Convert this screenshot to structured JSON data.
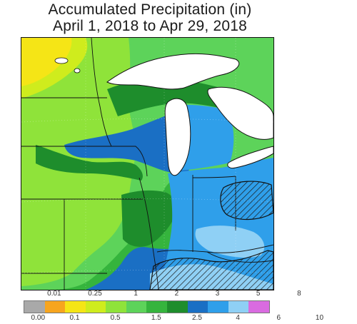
{
  "title": {
    "line1": "Accumulated Precipitation (in)",
    "line2": "April 1, 2018 to Apr 29, 2018"
  },
  "legend": {
    "colors": [
      "#a9a9a9",
      "#f7a51e",
      "#f5e516",
      "#cfec1d",
      "#8fe33a",
      "#5dd35a",
      "#35b43d",
      "#1e8d2c",
      "#1a6fc4",
      "#2f9fea",
      "#8fd0f5",
      "#d96be0"
    ],
    "top_labels": [
      "0.01",
      "0.25",
      "1",
      "2",
      "3",
      "5",
      "8"
    ],
    "bottom_labels": [
      "0.00",
      "0.1",
      "0.5",
      "1.5",
      "2.5",
      "4",
      "6",
      "10"
    ]
  },
  "map_colors": {
    "yellow": "#f5e516",
    "yellow_green": "#cfec1d",
    "light_green": "#8fe33a",
    "med_green": "#5dd35a",
    "green": "#35b43d",
    "dark_green": "#1e8d2c",
    "dark_blue": "#1a6fc4",
    "blue": "#2f9fea",
    "light_blue": "#8fd0f5",
    "lake": "#ffffff",
    "lines": "#111111"
  }
}
